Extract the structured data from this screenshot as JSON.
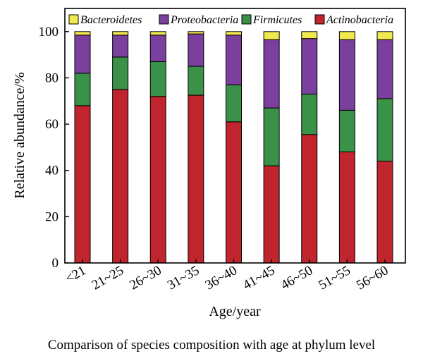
{
  "chart_data": {
    "type": "bar",
    "stacked": true,
    "categories": [
      "<21",
      "21~25",
      "26~30",
      "31~35",
      "36~40",
      "41~45",
      "46~50",
      "51~55",
      "56~60"
    ],
    "series": [
      {
        "name": "Actinobacteria",
        "color": "#c0242c",
        "values": [
          68,
          75,
          72,
          72.5,
          61,
          42,
          55.5,
          48,
          44
        ]
      },
      {
        "name": "Firmicutes",
        "color": "#3a9148",
        "values": [
          14,
          14,
          15,
          12.5,
          16,
          25,
          17.5,
          18,
          27
        ]
      },
      {
        "name": "Proteobacteria",
        "color": "#7b3f9e",
        "values": [
          16.5,
          9.5,
          11.5,
          14,
          21.5,
          29.5,
          24,
          30.5,
          25.5
        ]
      },
      {
        "name": "Bacteroidetes",
        "color": "#f2e94e",
        "values": [
          1.5,
          1.5,
          1.5,
          1,
          1.5,
          3.5,
          3,
          3.5,
          3.5
        ]
      }
    ],
    "legend_order": [
      "Bacteroidetes",
      "Proteobacteria",
      "Firmicutes",
      "Actinobacteria"
    ],
    "legend_position": "top",
    "xlabel": "Age/year",
    "ylabel": "Relative abundance/%",
    "ylim": [
      0,
      110
    ],
    "yticks": [
      0,
      20,
      40,
      60,
      80,
      100
    ],
    "grid": false
  },
  "caption": "Comparison of species composition with age at phylum level"
}
